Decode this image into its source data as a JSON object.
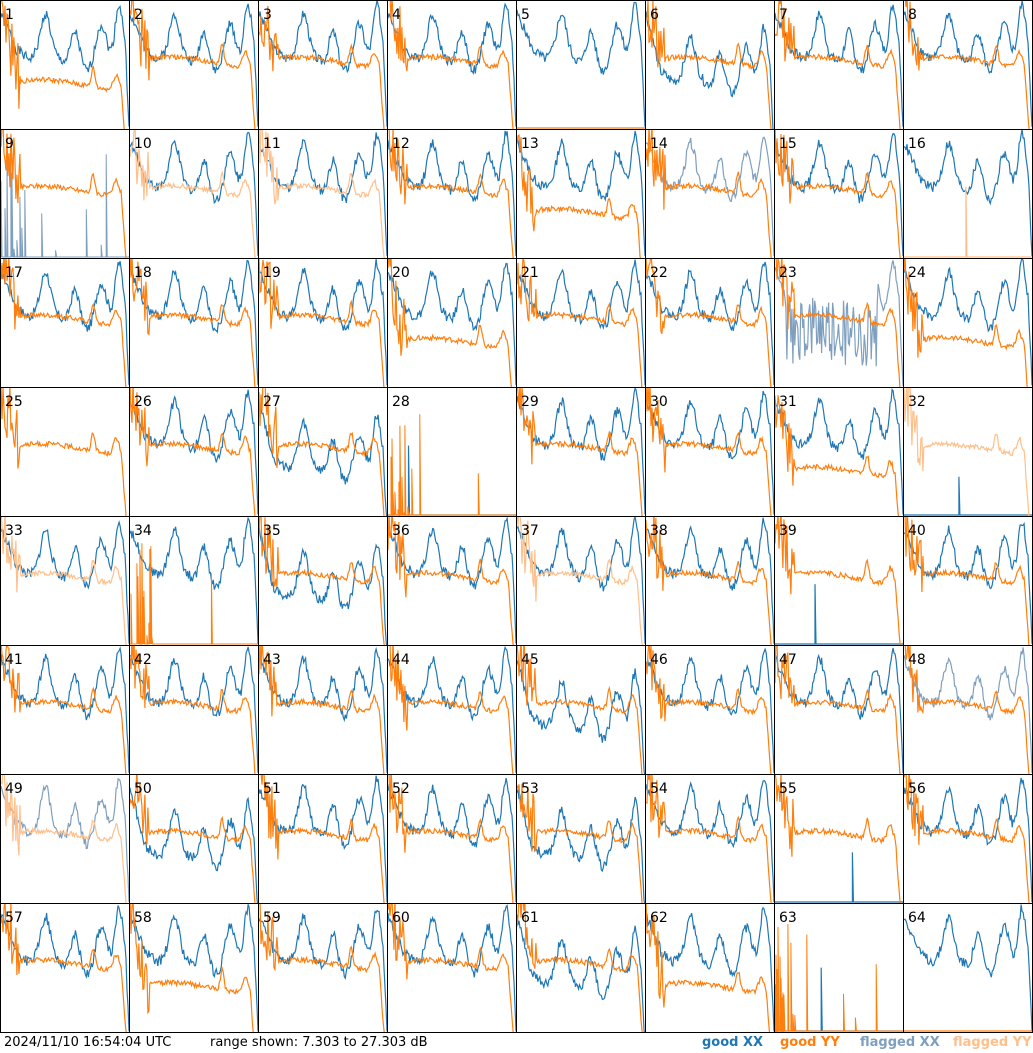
{
  "footer": {
    "timestamp": "2024/11/10 16:54:04 UTC",
    "range_text": "range shown: 7.303 to 27.303 dB"
  },
  "legend": [
    {
      "label": "good XX",
      "color": "#1f77b4"
    },
    {
      "label": "good YY",
      "color": "#ff7f0e"
    },
    {
      "label": "flagged XX",
      "color": "#7f9fbf"
    },
    {
      "label": "flagged YY",
      "color": "#ffbf8a"
    }
  ],
  "chart_data": {
    "type": "line",
    "grid": "8x8 small multiples",
    "ylim": [
      7.303,
      27.303
    ],
    "yunit": "dB",
    "panels": [
      {
        "id": "1",
        "xx": "good",
        "yy": "good",
        "yy_level": "low"
      },
      {
        "id": "2",
        "xx": "good",
        "yy": "good"
      },
      {
        "id": "3",
        "xx": "good",
        "yy": "good"
      },
      {
        "id": "4",
        "xx": "good",
        "yy": "good"
      },
      {
        "id": "5",
        "xx": "good",
        "yy": "dead"
      },
      {
        "id": "6",
        "xx": "good",
        "yy": "good",
        "xx_level": "low"
      },
      {
        "id": "7",
        "xx": "good",
        "yy": "good"
      },
      {
        "id": "8",
        "xx": "good",
        "yy": "good"
      },
      {
        "id": "9",
        "xx": "flagged-spikes",
        "yy": "good"
      },
      {
        "id": "10",
        "xx": "good",
        "yy": "flagged"
      },
      {
        "id": "11",
        "xx": "good",
        "yy": "flagged"
      },
      {
        "id": "12",
        "xx": "good",
        "yy": "good"
      },
      {
        "id": "13",
        "xx": "good",
        "yy": "good",
        "yy_level": "low"
      },
      {
        "id": "14",
        "xx": "flagged",
        "yy": "good"
      },
      {
        "id": "15",
        "xx": "good",
        "yy": "good"
      },
      {
        "id": "16",
        "xx": "good",
        "yy": "flagged-dead"
      },
      {
        "id": "17",
        "xx": "good",
        "yy": "good"
      },
      {
        "id": "18",
        "xx": "good",
        "yy": "good"
      },
      {
        "id": "19",
        "xx": "good",
        "yy": "good"
      },
      {
        "id": "20",
        "xx": "good",
        "yy": "good",
        "yy_level": "low"
      },
      {
        "id": "21",
        "xx": "good",
        "yy": "good"
      },
      {
        "id": "22",
        "xx": "good",
        "yy": "good"
      },
      {
        "id": "23",
        "xx": "flagged-noisy",
        "yy": "good"
      },
      {
        "id": "24",
        "xx": "good",
        "yy": "good",
        "yy_level": "low"
      },
      {
        "id": "25",
        "xx": "none",
        "yy": "good"
      },
      {
        "id": "26",
        "xx": "good",
        "yy": "good"
      },
      {
        "id": "27",
        "xx": "good",
        "yy": "good",
        "xx_level": "low"
      },
      {
        "id": "28",
        "xx": "dead",
        "yy": "spikes"
      },
      {
        "id": "29",
        "xx": "good",
        "yy": "good"
      },
      {
        "id": "30",
        "xx": "good",
        "yy": "good"
      },
      {
        "id": "31",
        "xx": "good",
        "yy": "good",
        "yy_level": "low"
      },
      {
        "id": "32",
        "xx": "dead",
        "yy": "flagged"
      },
      {
        "id": "33",
        "xx": "good",
        "yy": "flagged"
      },
      {
        "id": "34",
        "xx": "good",
        "yy": "spikes"
      },
      {
        "id": "35",
        "xx": "good",
        "yy": "good",
        "xx_level": "low"
      },
      {
        "id": "36",
        "xx": "good",
        "yy": "good"
      },
      {
        "id": "37",
        "xx": "good",
        "yy": "flagged"
      },
      {
        "id": "38",
        "xx": "good",
        "yy": "good"
      },
      {
        "id": "39",
        "xx": "dead",
        "yy": "good"
      },
      {
        "id": "40",
        "xx": "good",
        "yy": "good"
      },
      {
        "id": "41",
        "xx": "good",
        "yy": "good"
      },
      {
        "id": "42",
        "xx": "good",
        "yy": "good"
      },
      {
        "id": "43",
        "xx": "good",
        "yy": "good"
      },
      {
        "id": "44",
        "xx": "good",
        "yy": "good"
      },
      {
        "id": "45",
        "xx": "good",
        "yy": "good",
        "xx_level": "low"
      },
      {
        "id": "46",
        "xx": "good",
        "yy": "good"
      },
      {
        "id": "47",
        "xx": "good",
        "yy": "good"
      },
      {
        "id": "48",
        "xx": "flagged",
        "yy": "good"
      },
      {
        "id": "49",
        "xx": "flagged",
        "yy": "flagged"
      },
      {
        "id": "50",
        "xx": "good",
        "yy": "good",
        "xx_level": "low"
      },
      {
        "id": "51",
        "xx": "good",
        "yy": "good"
      },
      {
        "id": "52",
        "xx": "good",
        "yy": "good"
      },
      {
        "id": "53",
        "xx": "good",
        "yy": "good",
        "xx_level": "low"
      },
      {
        "id": "54",
        "xx": "good",
        "yy": "good"
      },
      {
        "id": "55",
        "xx": "dead",
        "yy": "good"
      },
      {
        "id": "56",
        "xx": "good",
        "yy": "good"
      },
      {
        "id": "57",
        "xx": "good",
        "yy": "good"
      },
      {
        "id": "58",
        "xx": "good",
        "yy": "good",
        "yy_level": "low"
      },
      {
        "id": "59",
        "xx": "good",
        "yy": "good"
      },
      {
        "id": "60",
        "xx": "good",
        "yy": "good"
      },
      {
        "id": "61",
        "xx": "good",
        "yy": "good",
        "xx_level": "low"
      },
      {
        "id": "62",
        "xx": "good",
        "yy": "good",
        "yy_level": "low"
      },
      {
        "id": "63",
        "xx": "dead",
        "yy": "spikes"
      },
      {
        "id": "64",
        "xx": "good",
        "yy": "dead"
      }
    ]
  }
}
